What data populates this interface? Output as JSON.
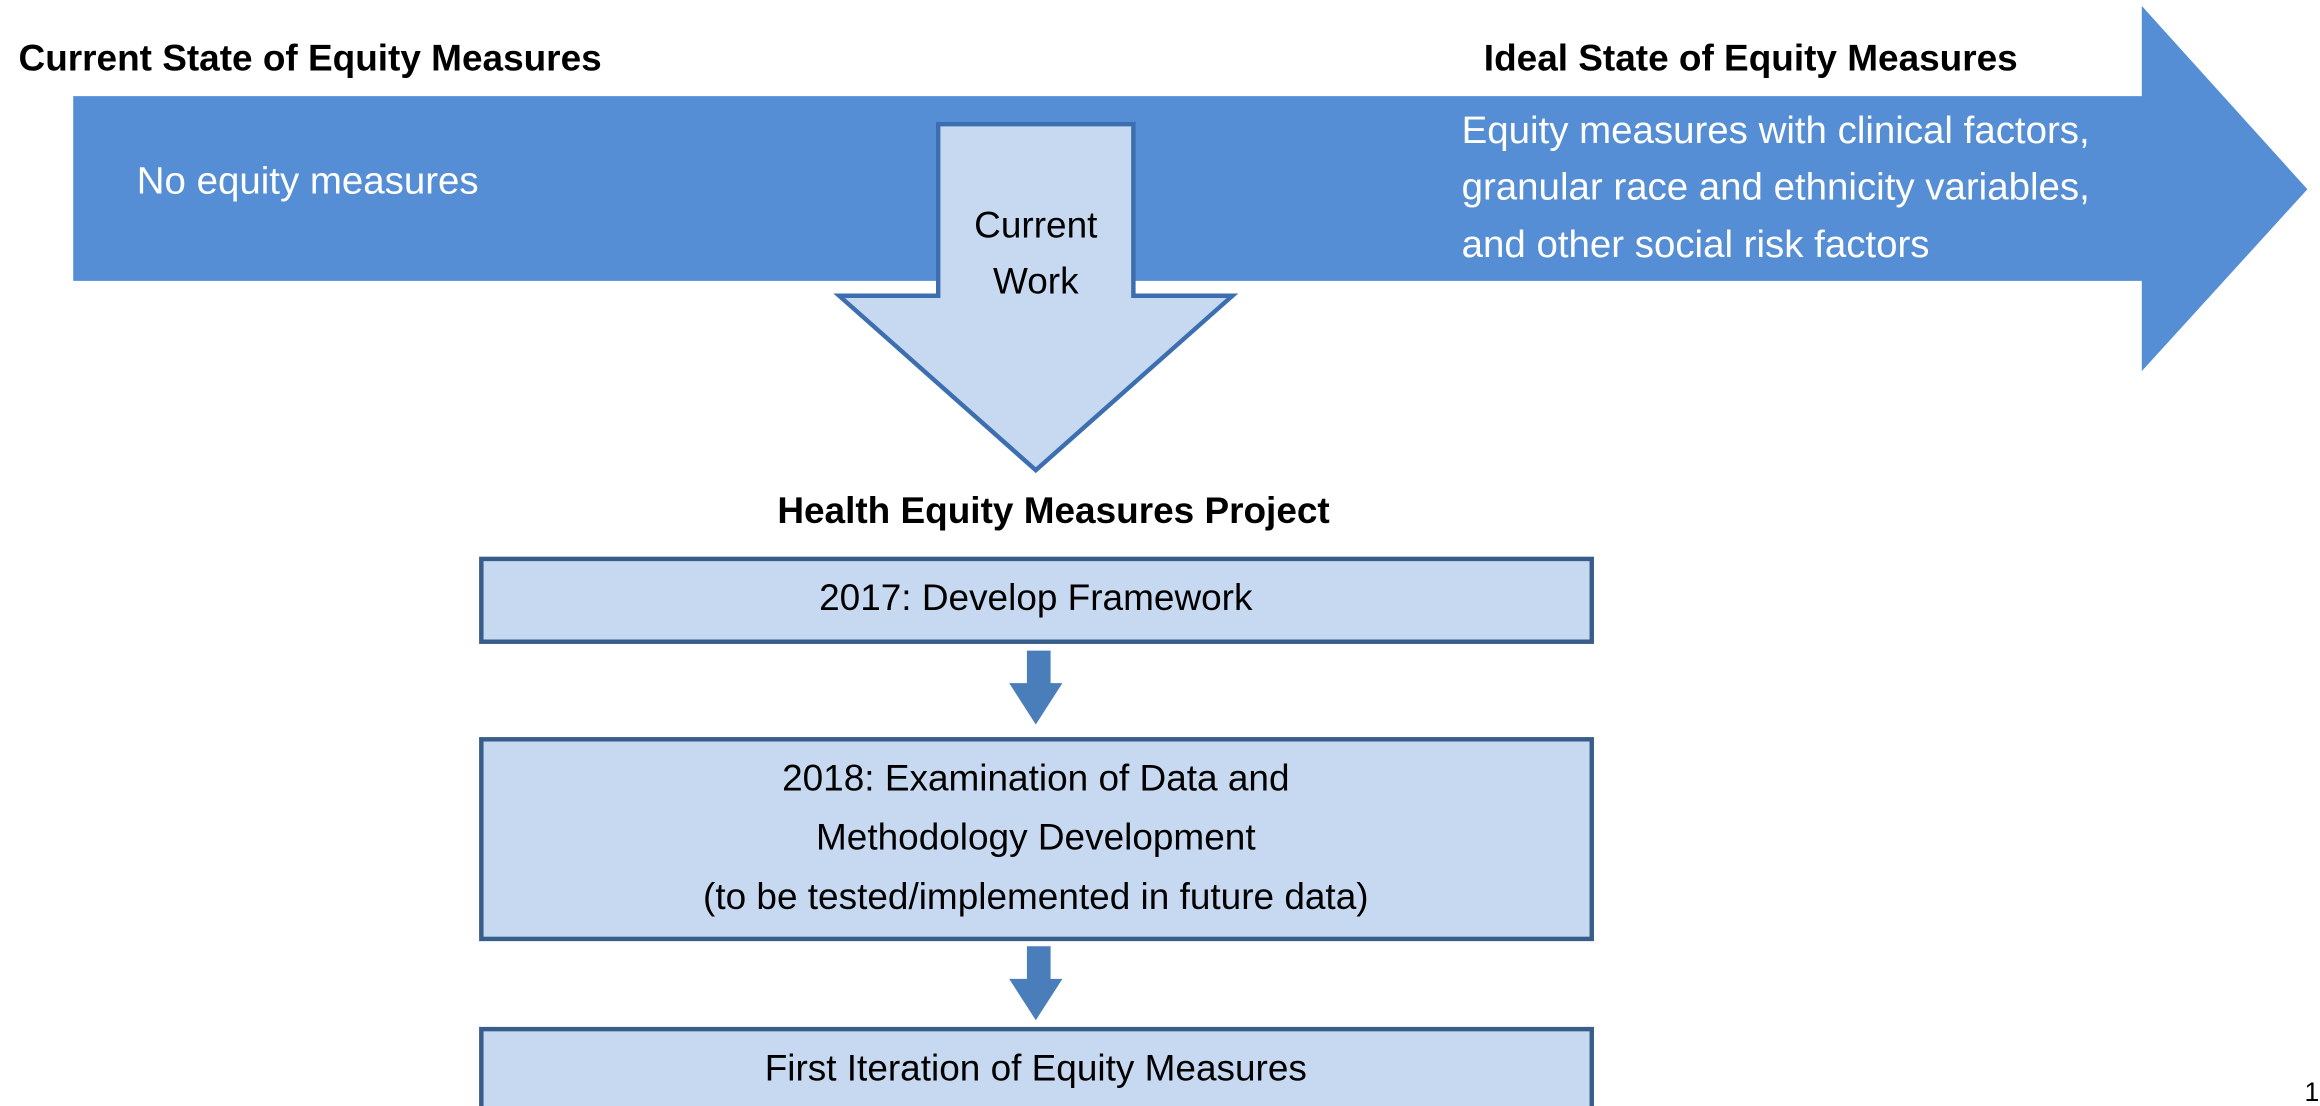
{
  "header": {
    "left": "Current State of Equity Measures",
    "right": "Ideal State of Equity Measures"
  },
  "arrow": {
    "left_text": "No equity measures",
    "right_text": [
      "Equity measures with clinical factors,",
      "granular race and ethnicity variables,",
      "and other social risk factors"
    ]
  },
  "current_work": [
    "Current",
    "Work"
  ],
  "project": {
    "title": "Health Equity Measures Project",
    "steps": [
      [
        "2017: Develop Framework"
      ],
      [
        "2018: Examination of Data and",
        "Methodology Development",
        "(to be tested/implemented in future data)"
      ],
      [
        "First Iteration of Equity Measures"
      ]
    ]
  },
  "page_number": "1"
}
